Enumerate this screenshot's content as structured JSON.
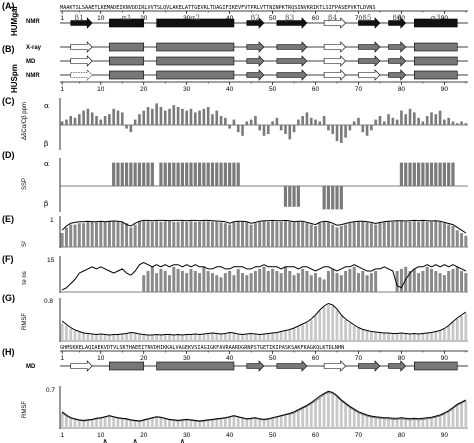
{
  "panels": {
    "A": {
      "label": "(A)",
      "side_label": "HUMgal",
      "row_label": "NMR",
      "sequence": "MAAKTSLSAAETLKEMADEIKNVDDIRLVVTSLQVLAKELATTGEVRLTDAGIFIKEVFVTPRLVTTNINPKTRQSINVKRIKTLSIFPASEPVKTLDVNS"
    },
    "B": {
      "label": "(B)",
      "side_label": "HUSpm",
      "rows": [
        "X-ray",
        "MD",
        "NMR"
      ]
    },
    "C": {
      "label": "(C)",
      "ylabel": "ΔδCα/Cβ ppm",
      "top": "α",
      "bottom": "β"
    },
    "D": {
      "label": "(D)",
      "ylabel": "SSP",
      "top": "α",
      "bottom": "β"
    },
    "E": {
      "label": "(E)",
      "ylabel": "S²",
      "ytick": "1"
    },
    "F": {
      "label": "(F)",
      "ylabel": "τe ns",
      "ytick": "15"
    },
    "G": {
      "label": "(G)",
      "ylabel": "RMSF",
      "ytick": "0.8",
      "sequence": "GHMSKKELAQIAEKVDTVLSKTHAEEITNVDHIKKALVAGEKVSIAGIGKFAVRAARDGRNPSTGETIKIPASKSAKFKAGKQLKTDLNHN"
    },
    "H": {
      "label": "(H)",
      "ylabel": "RMSF",
      "ytick": "0.7",
      "row_label": "MD"
    }
  },
  "axis": {
    "ticks": [
      "1",
      "10",
      "20",
      "30",
      "40",
      "50",
      "60",
      "70",
      "80",
      "90"
    ]
  },
  "ss_labels": [
    "β1",
    "α1",
    "α2",
    "β2",
    "β3",
    "β4",
    "β5",
    "β6",
    "α3"
  ],
  "caret": "∧",
  "chart_data": {
    "type": "bar",
    "residues": [
      1,
      95
    ],
    "panel_C_values": [
      0.2,
      0.3,
      0.5,
      0.4,
      0.6,
      0.8,
      0.9,
      0.7,
      0.5,
      0.3,
      0.5,
      0.6,
      0.9,
      0.8,
      0.7,
      -0.2,
      -0.4,
      0.3,
      0.6,
      0.8,
      1.0,
      0.9,
      1.2,
      1.0,
      0.8,
      0.9,
      1.1,
      1.0,
      0.9,
      0.8,
      0.9,
      0.7,
      0.8,
      0.9,
      1.0,
      0.6,
      0.8,
      0.5,
      0.4,
      -0.2,
      0.3,
      -0.4,
      -0.6,
      0.2,
      0.3,
      0.5,
      -0.3,
      -0.6,
      -0.5,
      0.2,
      0.4,
      -0.3,
      -0.5,
      -0.8,
      -0.4,
      0.3,
      0.5,
      0.7,
      0.4,
      0.3,
      0.2,
      0.5,
      -0.3,
      -0.5,
      -0.9,
      -1.0,
      -0.7,
      -0.3,
      0.2,
      0.4,
      -0.4,
      -0.6,
      -0.3,
      0.3,
      0.5,
      0.2,
      0.6,
      0.4,
      0.3,
      0.8,
      0.6,
      0.9,
      0.7,
      0.4,
      0.2,
      0.5,
      0.7,
      0.6,
      0.8,
      0.3,
      0.4,
      0.2,
      0.1,
      0.2,
      0.1
    ],
    "panel_D_values": [
      0,
      0,
      0,
      0,
      0,
      0,
      0,
      0,
      0,
      0,
      0,
      0,
      0.9,
      0.9,
      0.9,
      0.9,
      0.9,
      0.9,
      0.9,
      0.9,
      0.9,
      0.9,
      0,
      0.9,
      0.9,
      0.9,
      0.9,
      0.9,
      0.9,
      0.9,
      0.9,
      0.9,
      0.9,
      0.9,
      0.9,
      0.9,
      0.9,
      0.9,
      0.9,
      0.9,
      0.9,
      0.9,
      0,
      0,
      0,
      0,
      0,
      0,
      0,
      0,
      0,
      0,
      -0.8,
      -0.8,
      -0.8,
      -0.8,
      0,
      0,
      0,
      0,
      0,
      -0.9,
      -0.9,
      -0.9,
      -0.9,
      -0.9,
      0,
      0,
      0,
      0,
      0,
      0,
      0,
      0,
      0,
      0,
      0,
      0,
      0,
      0.9,
      0.9,
      0.9,
      0.9,
      0.9,
      0.9,
      0.9,
      0.9,
      0.9,
      0.9,
      0.9,
      0.9,
      0.9,
      0,
      0,
      0
    ],
    "panel_E_values": [
      0.5,
      0.7,
      0.8,
      0.8,
      0.85,
      0.85,
      0.9,
      0.9,
      0.88,
      0.9,
      0.9,
      0.92,
      0.9,
      0.9,
      0.9,
      0.85,
      0.7,
      0.8,
      0.9,
      0.92,
      0.92,
      0.9,
      0.92,
      0.9,
      0.92,
      0.92,
      0.9,
      0.9,
      0.92,
      0.9,
      0.92,
      0.9,
      0.9,
      0.92,
      0.92,
      0.9,
      0.9,
      0.88,
      0.85,
      0.8,
      0.88,
      0.9,
      0.9,
      0.88,
      0.8,
      0.85,
      0.9,
      0.92,
      0.9,
      0.92,
      0.9,
      0.9,
      0.92,
      0.9,
      0.88,
      0.9,
      0.9,
      0.85,
      0.8,
      0.75,
      0.85,
      0.9,
      0.88,
      0.8,
      0.7,
      0.75,
      0.8,
      0.85,
      0.88,
      0.9,
      0.9,
      0.88,
      0.85,
      0.8,
      0.86,
      0.88,
      0.9,
      0.9,
      0.92,
      0.92,
      0.9,
      0.9,
      0.92,
      0.9,
      0.92,
      0.9,
      0.9,
      0.92,
      0.9,
      0.85,
      0.8,
      0.75,
      0.6,
      0.5,
      0.4
    ],
    "panel_E_line": [
      0.6,
      0.75,
      0.85,
      0.88,
      0.9,
      0.9,
      0.92,
      0.9,
      0.9,
      0.92,
      0.9,
      0.92,
      0.93,
      0.92,
      0.9,
      0.8,
      0.75,
      0.85,
      0.92,
      0.95,
      0.95,
      0.94,
      0.95,
      0.95,
      0.95,
      0.94,
      0.95,
      0.95,
      0.95,
      0.94,
      0.95,
      0.95,
      0.94,
      0.95,
      0.95,
      0.94,
      0.93,
      0.92,
      0.9,
      0.85,
      0.9,
      0.92,
      0.92,
      0.9,
      0.85,
      0.88,
      0.92,
      0.94,
      0.94,
      0.95,
      0.94,
      0.94,
      0.95,
      0.93,
      0.9,
      0.92,
      0.92,
      0.88,
      0.84,
      0.8,
      0.88,
      0.92,
      0.9,
      0.85,
      0.78,
      0.8,
      0.84,
      0.88,
      0.9,
      0.92,
      0.92,
      0.9,
      0.88,
      0.84,
      0.88,
      0.9,
      0.92,
      0.93,
      0.94,
      0.94,
      0.93,
      0.94,
      0.95,
      0.94,
      0.95,
      0.94,
      0.93,
      0.94,
      0.92,
      0.88,
      0.84,
      0.8,
      0.7,
      0.6,
      0.5
    ],
    "panel_F_values": [
      0,
      0,
      0,
      0,
      0,
      0,
      0,
      0,
      0,
      0,
      0,
      0,
      0,
      0,
      0,
      0,
      0,
      0,
      0,
      8,
      10,
      12,
      9,
      11,
      10,
      8,
      12,
      11,
      10,
      9,
      11,
      10,
      9,
      12,
      10,
      9,
      8,
      7,
      9,
      10,
      8,
      11,
      9,
      8,
      9,
      10,
      11,
      12,
      10,
      11,
      10,
      9,
      12,
      10,
      8,
      9,
      11,
      10,
      8,
      9,
      7,
      6,
      10,
      11,
      9,
      8,
      10,
      11,
      12,
      9,
      10,
      8,
      9,
      10,
      0,
      0,
      0,
      0,
      10,
      11,
      12,
      10,
      11,
      9,
      10,
      12,
      11,
      10,
      9,
      8,
      10,
      11,
      12,
      10,
      9
    ],
    "panel_F_line": [
      1,
      2,
      4,
      6,
      9,
      10,
      11,
      12,
      11,
      12,
      11,
      10,
      9,
      10,
      11,
      9,
      8,
      10,
      13,
      14,
      13,
      12,
      13,
      12,
      13,
      12,
      13,
      13,
      12,
      13,
      12,
      13,
      12,
      12,
      11,
      11,
      12,
      12,
      11,
      11,
      12,
      12,
      12,
      11,
      11,
      12,
      12,
      13,
      12,
      12,
      12,
      11,
      12,
      12,
      12,
      11,
      12,
      12,
      11,
      10,
      11,
      12,
      12,
      11,
      10,
      11,
      12,
      12,
      13,
      12,
      11,
      10,
      10,
      11,
      11,
      12,
      11,
      10,
      3,
      2,
      6,
      9,
      11,
      12,
      12,
      13,
      12,
      13,
      12,
      13,
      12,
      13,
      12,
      11,
      10
    ],
    "panel_G_values": [
      0.35,
      0.3,
      0.25,
      0.2,
      0.18,
      0.15,
      0.14,
      0.13,
      0.12,
      0.13,
      0.12,
      0.11,
      0.12,
      0.12,
      0.13,
      0.14,
      0.16,
      0.15,
      0.13,
      0.12,
      0.11,
      0.11,
      0.12,
      0.11,
      0.12,
      0.12,
      0.11,
      0.12,
      0.11,
      0.12,
      0.12,
      0.13,
      0.12,
      0.13,
      0.14,
      0.15,
      0.14,
      0.13,
      0.14,
      0.16,
      0.15,
      0.13,
      0.12,
      0.13,
      0.14,
      0.13,
      0.12,
      0.13,
      0.14,
      0.15,
      0.16,
      0.18,
      0.2,
      0.22,
      0.25,
      0.28,
      0.32,
      0.36,
      0.42,
      0.5,
      0.6,
      0.68,
      0.72,
      0.7,
      0.62,
      0.5,
      0.42,
      0.36,
      0.3,
      0.26,
      0.22,
      0.2,
      0.18,
      0.17,
      0.16,
      0.15,
      0.15,
      0.14,
      0.14,
      0.15,
      0.14,
      0.13,
      0.14,
      0.13,
      0.14,
      0.15,
      0.16,
      0.18,
      0.2,
      0.24,
      0.3,
      0.38,
      0.45,
      0.5,
      0.55
    ],
    "panel_G_line": [
      0.4,
      0.33,
      0.27,
      0.22,
      0.19,
      0.16,
      0.15,
      0.14,
      0.13,
      0.14,
      0.13,
      0.12,
      0.13,
      0.13,
      0.14,
      0.15,
      0.17,
      0.16,
      0.14,
      0.13,
      0.12,
      0.12,
      0.13,
      0.12,
      0.13,
      0.13,
      0.12,
      0.13,
      0.12,
      0.13,
      0.13,
      0.14,
      0.13,
      0.14,
      0.15,
      0.16,
      0.15,
      0.14,
      0.15,
      0.17,
      0.16,
      0.14,
      0.13,
      0.14,
      0.15,
      0.14,
      0.13,
      0.14,
      0.15,
      0.16,
      0.17,
      0.19,
      0.21,
      0.23,
      0.26,
      0.3,
      0.34,
      0.38,
      0.44,
      0.52,
      0.62,
      0.7,
      0.75,
      0.72,
      0.64,
      0.52,
      0.44,
      0.38,
      0.32,
      0.27,
      0.23,
      0.21,
      0.19,
      0.18,
      0.17,
      0.16,
      0.16,
      0.15,
      0.15,
      0.16,
      0.15,
      0.14,
      0.15,
      0.14,
      0.15,
      0.16,
      0.17,
      0.19,
      0.21,
      0.25,
      0.31,
      0.39,
      0.46,
      0.52,
      0.58
    ],
    "panel_H_values": [
      0.28,
      0.22,
      0.18,
      0.16,
      0.14,
      0.13,
      0.14,
      0.15,
      0.17,
      0.18,
      0.2,
      0.22,
      0.2,
      0.18,
      0.17,
      0.16,
      0.14,
      0.13,
      0.12,
      0.14,
      0.16,
      0.18,
      0.2,
      0.19,
      0.17,
      0.15,
      0.14,
      0.13,
      0.14,
      0.15,
      0.14,
      0.13,
      0.12,
      0.13,
      0.14,
      0.15,
      0.16,
      0.17,
      0.18,
      0.2,
      0.22,
      0.2,
      0.18,
      0.16,
      0.17,
      0.18,
      0.16,
      0.15,
      0.16,
      0.18,
      0.2,
      0.22,
      0.24,
      0.26,
      0.28,
      0.32,
      0.36,
      0.4,
      0.45,
      0.5,
      0.56,
      0.62,
      0.66,
      0.64,
      0.58,
      0.5,
      0.44,
      0.38,
      0.33,
      0.28,
      0.25,
      0.22,
      0.2,
      0.19,
      0.18,
      0.17,
      0.17,
      0.16,
      0.16,
      0.17,
      0.16,
      0.15,
      0.16,
      0.15,
      0.16,
      0.17,
      0.18,
      0.2,
      0.22,
      0.26,
      0.3,
      0.36,
      0.42,
      0.46,
      0.5
    ],
    "panel_H_line": [
      0.3,
      0.24,
      0.19,
      0.17,
      0.15,
      0.14,
      0.15,
      0.16,
      0.18,
      0.19,
      0.21,
      0.23,
      0.21,
      0.19,
      0.18,
      0.17,
      0.15,
      0.14,
      0.13,
      0.15,
      0.17,
      0.19,
      0.21,
      0.2,
      0.18,
      0.16,
      0.15,
      0.14,
      0.15,
      0.16,
      0.15,
      0.14,
      0.13,
      0.14,
      0.15,
      0.16,
      0.17,
      0.18,
      0.19,
      0.21,
      0.23,
      0.21,
      0.19,
      0.17,
      0.18,
      0.19,
      0.17,
      0.16,
      0.17,
      0.19,
      0.21,
      0.23,
      0.25,
      0.27,
      0.3,
      0.34,
      0.38,
      0.42,
      0.47,
      0.53,
      0.59,
      0.64,
      0.68,
      0.66,
      0.6,
      0.52,
      0.46,
      0.4,
      0.35,
      0.3,
      0.27,
      0.24,
      0.22,
      0.21,
      0.2,
      0.19,
      0.19,
      0.18,
      0.18,
      0.19,
      0.18,
      0.17,
      0.18,
      0.17,
      0.18,
      0.19,
      0.2,
      0.22,
      0.24,
      0.28,
      0.32,
      0.38,
      0.44,
      0.48,
      0.52
    ]
  }
}
